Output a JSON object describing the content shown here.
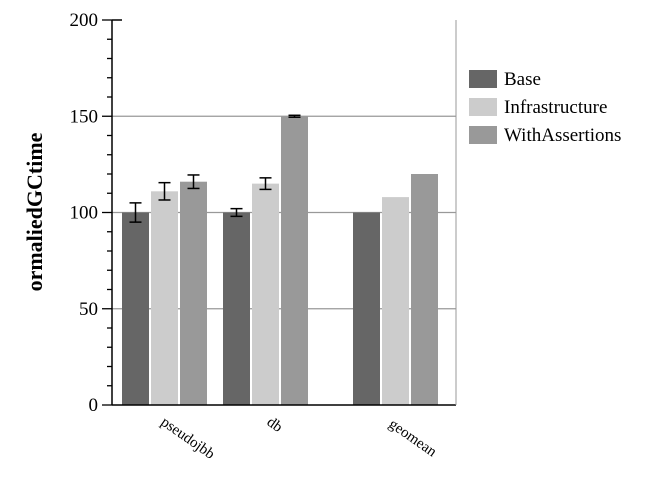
{
  "chart_data": {
    "type": "bar",
    "title": "",
    "xlabel": "",
    "ylabel": "ormaliedGCtime",
    "ylim": [
      0,
      200
    ],
    "yticks": [
      0,
      50,
      100,
      150,
      200
    ],
    "yticks_labels": [
      "0",
      "50",
      "100",
      "150",
      "200"
    ],
    "categories": [
      "pseudojbb",
      "db",
      "geomean"
    ],
    "grid": "horizontal major",
    "legend_position": "right",
    "series": [
      {
        "name": "Base",
        "color": "#666666",
        "values": [
          100,
          100,
          100
        ],
        "errors": [
          5,
          2,
          null
        ]
      },
      {
        "name": "Infrastructure",
        "color": "#cccccc",
        "values": [
          111,
          115,
          108
        ],
        "errors": [
          4.5,
          3,
          null
        ]
      },
      {
        "name": "WithAssertions",
        "color": "#999999",
        "values": [
          116,
          150,
          120
        ],
        "errors": [
          3.5,
          0.5,
          null
        ]
      }
    ]
  }
}
